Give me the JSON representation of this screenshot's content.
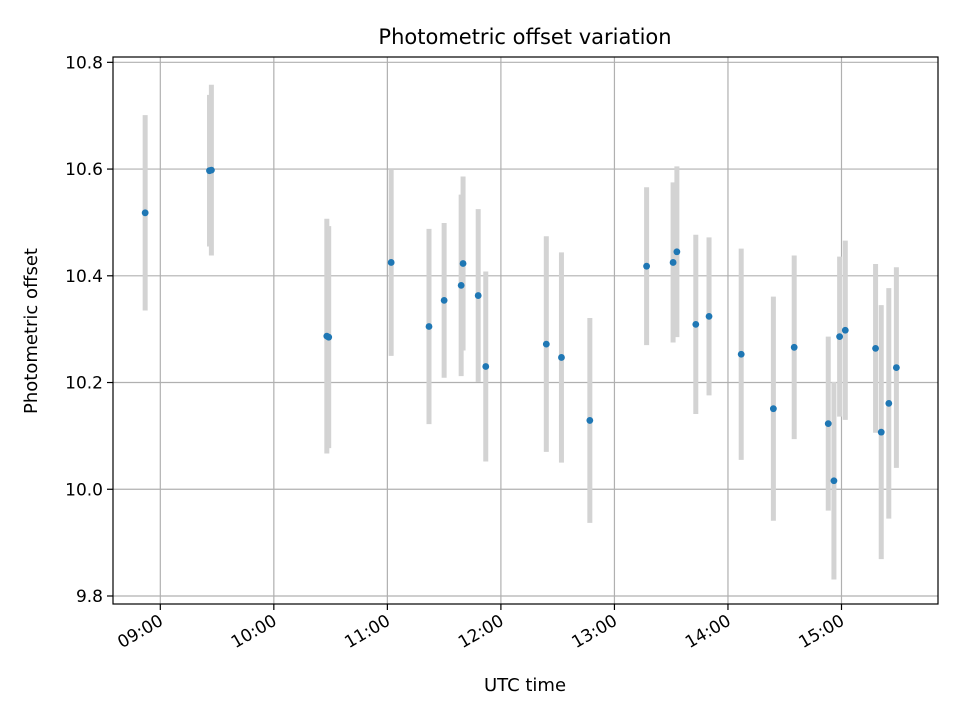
{
  "chart_data": {
    "type": "scatter",
    "title": "Photometric offset variation",
    "xlabel": "UTC time",
    "ylabel": "Photometric offset",
    "x_tick_labels": [
      "09:00",
      "10:00",
      "11:00",
      "12:00",
      "13:00",
      "14:00",
      "15:00"
    ],
    "y_tick_labels": [
      "9.8",
      "10.0",
      "10.2",
      "10.4",
      "10.6",
      "10.8"
    ],
    "x_ticks": [
      "09:00",
      "10:00",
      "11:00",
      "12:00",
      "13:00",
      "14:00",
      "15:00"
    ],
    "y_ticks": [
      9.8,
      10.0,
      10.2,
      10.4,
      10.6,
      10.8
    ],
    "xlim": [
      "08:35",
      "15:51"
    ],
    "ylim": [
      9.785,
      10.81
    ],
    "grid": true,
    "colors": {
      "point": "#1f77b4",
      "errorbar": "#d3d3d3",
      "grid": "#b0b0b0"
    },
    "points": [
      {
        "time": "08:52",
        "y": 10.518,
        "err": 0.183
      },
      {
        "time": "09:26",
        "y": 10.597,
        "err": 0.142
      },
      {
        "time": "09:27",
        "y": 10.598,
        "err": 0.16
      },
      {
        "time": "10:28",
        "y": 10.287,
        "err": 0.22
      },
      {
        "time": "10:29",
        "y": 10.285,
        "err": 0.208
      },
      {
        "time": "11:02",
        "y": 10.425,
        "err": 0.175
      },
      {
        "time": "11:22",
        "y": 10.305,
        "err": 0.183
      },
      {
        "time": "11:30",
        "y": 10.354,
        "err": 0.145
      },
      {
        "time": "11:39",
        "y": 10.382,
        "err": 0.17
      },
      {
        "time": "11:40",
        "y": 10.423,
        "err": 0.163
      },
      {
        "time": "11:48",
        "y": 10.363,
        "err": 0.162
      },
      {
        "time": "11:52",
        "y": 10.23,
        "err": 0.178
      },
      {
        "time": "12:24",
        "y": 10.272,
        "err": 0.202
      },
      {
        "time": "12:32",
        "y": 10.247,
        "err": 0.197
      },
      {
        "time": "12:47",
        "y": 10.129,
        "err": 0.192
      },
      {
        "time": "13:17",
        "y": 10.418,
        "err": 0.148
      },
      {
        "time": "13:31",
        "y": 10.425,
        "err": 0.15
      },
      {
        "time": "13:33",
        "y": 10.445,
        "err": 0.16
      },
      {
        "time": "13:43",
        "y": 10.309,
        "err": 0.168
      },
      {
        "time": "13:50",
        "y": 10.324,
        "err": 0.148
      },
      {
        "time": "14:07",
        "y": 10.253,
        "err": 0.198
      },
      {
        "time": "14:24",
        "y": 10.151,
        "err": 0.21
      },
      {
        "time": "14:35",
        "y": 10.266,
        "err": 0.172
      },
      {
        "time": "14:53",
        "y": 10.123,
        "err": 0.163
      },
      {
        "time": "14:56",
        "y": 10.016,
        "err": 0.185
      },
      {
        "time": "14:59",
        "y": 10.286,
        "err": 0.15
      },
      {
        "time": "15:02",
        "y": 10.298,
        "err": 0.168
      },
      {
        "time": "15:18",
        "y": 10.264,
        "err": 0.158
      },
      {
        "time": "15:21",
        "y": 10.107,
        "err": 0.238
      },
      {
        "time": "15:25",
        "y": 10.161,
        "err": 0.216
      },
      {
        "time": "15:29",
        "y": 10.228,
        "err": 0.188
      }
    ]
  }
}
